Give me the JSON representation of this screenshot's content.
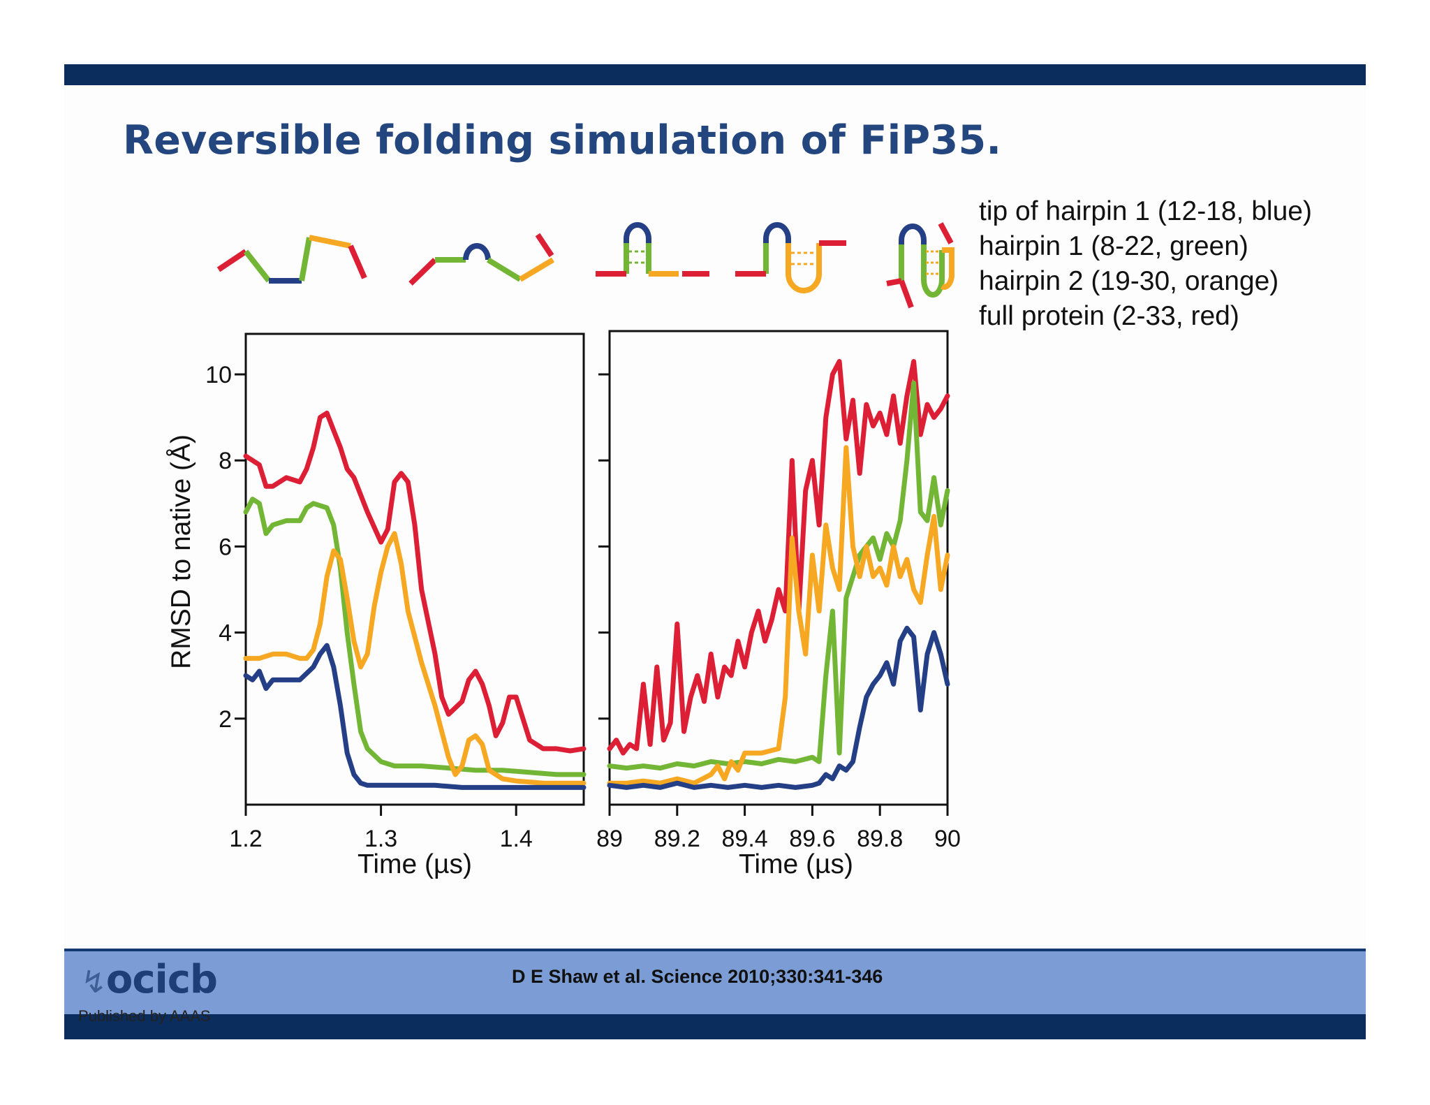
{
  "slide": {
    "title": "Reversible folding simulation of FiP35.",
    "legend": [
      "tip of hairpin 1 (12-18, blue)",
      "hairpin 1 (8-22, green)",
      "hairpin 2 (19-30, orange)",
      "full protein (2-33, red)"
    ],
    "citation": "D E Shaw et al. Science 2010;330:341-346",
    "logo_text": "ocicb",
    "publisher": "Published by AAAS"
  },
  "colors": {
    "blue": "#243f86",
    "green": "#73b636",
    "orange": "#f7a823",
    "red": "#dd1f36",
    "band_dark": "#0b2d5e",
    "band_light": "#7b9cd4",
    "title": "#23467f"
  },
  "chart_data": [
    {
      "type": "line",
      "ylabel": "RMSD to native (Å)",
      "xlabel": "Time (µs)",
      "xlim": [
        1.2,
        1.45
      ],
      "ylim": [
        0,
        10.9
      ],
      "xticks": [
        "1.2",
        "1.3",
        "1.4"
      ],
      "yticks": [
        "2",
        "4",
        "6",
        "8",
        "10"
      ],
      "series": [
        {
          "color": "red",
          "x": [
            1.2,
            1.205,
            1.21,
            1.215,
            1.22,
            1.23,
            1.24,
            1.245,
            1.25,
            1.255,
            1.26,
            1.265,
            1.27,
            1.275,
            1.28,
            1.29,
            1.3,
            1.305,
            1.31,
            1.315,
            1.32,
            1.325,
            1.33,
            1.34,
            1.345,
            1.35,
            1.36,
            1.365,
            1.37,
            1.375,
            1.38,
            1.385,
            1.39,
            1.395,
            1.4,
            1.405,
            1.41,
            1.42,
            1.43,
            1.44,
            1.45
          ],
          "y": [
            8.1,
            8.0,
            7.9,
            7.4,
            7.4,
            7.6,
            7.5,
            7.8,
            8.3,
            9.0,
            9.1,
            8.7,
            8.3,
            7.8,
            7.6,
            6.8,
            6.1,
            6.4,
            7.5,
            7.7,
            7.5,
            6.5,
            5.0,
            3.5,
            2.5,
            2.1,
            2.4,
            2.9,
            3.1,
            2.8,
            2.3,
            1.6,
            1.9,
            2.5,
            2.5,
            2.0,
            1.5,
            1.3,
            1.3,
            1.25,
            1.3
          ]
        },
        {
          "color": "green",
          "x": [
            1.2,
            1.205,
            1.21,
            1.215,
            1.22,
            1.23,
            1.24,
            1.245,
            1.25,
            1.26,
            1.265,
            1.27,
            1.275,
            1.28,
            1.285,
            1.29,
            1.3,
            1.31,
            1.32,
            1.33,
            1.35,
            1.37,
            1.39,
            1.41,
            1.43,
            1.45
          ],
          "y": [
            6.8,
            7.1,
            7.0,
            6.3,
            6.5,
            6.6,
            6.6,
            6.9,
            7.0,
            6.9,
            6.5,
            5.5,
            4.0,
            2.8,
            1.7,
            1.3,
            1.0,
            0.9,
            0.9,
            0.9,
            0.85,
            0.8,
            0.8,
            0.75,
            0.7,
            0.7
          ]
        },
        {
          "color": "orange",
          "x": [
            1.2,
            1.21,
            1.22,
            1.23,
            1.24,
            1.245,
            1.25,
            1.255,
            1.26,
            1.265,
            1.27,
            1.275,
            1.28,
            1.285,
            1.29,
            1.295,
            1.3,
            1.305,
            1.31,
            1.315,
            1.32,
            1.33,
            1.34,
            1.345,
            1.35,
            1.355,
            1.36,
            1.365,
            1.37,
            1.375,
            1.38,
            1.39,
            1.4,
            1.42,
            1.45
          ],
          "y": [
            3.4,
            3.4,
            3.5,
            3.5,
            3.4,
            3.4,
            3.6,
            4.2,
            5.3,
            5.9,
            5.7,
            4.8,
            3.8,
            3.2,
            3.5,
            4.6,
            5.4,
            6.0,
            6.3,
            5.6,
            4.5,
            3.3,
            2.3,
            1.7,
            1.1,
            0.7,
            0.9,
            1.5,
            1.6,
            1.4,
            0.8,
            0.6,
            0.55,
            0.5,
            0.5
          ]
        },
        {
          "color": "blue",
          "x": [
            1.2,
            1.205,
            1.21,
            1.215,
            1.22,
            1.23,
            1.24,
            1.25,
            1.255,
            1.26,
            1.265,
            1.27,
            1.275,
            1.28,
            1.285,
            1.29,
            1.3,
            1.32,
            1.34,
            1.36,
            1.38,
            1.4,
            1.42,
            1.45
          ],
          "y": [
            3.0,
            2.9,
            3.1,
            2.7,
            2.9,
            2.9,
            2.9,
            3.2,
            3.5,
            3.7,
            3.2,
            2.3,
            1.2,
            0.7,
            0.5,
            0.45,
            0.45,
            0.45,
            0.45,
            0.4,
            0.4,
            0.4,
            0.4,
            0.4
          ]
        }
      ]
    },
    {
      "type": "line",
      "xlabel": "Time (µs)",
      "xlim": [
        89,
        90
      ],
      "ylim": [
        0,
        10.9
      ],
      "xticks": [
        "89",
        "89.2",
        "89.4",
        "89.6",
        "89.8",
        "90"
      ],
      "series": [
        {
          "color": "red",
          "x": [
            89.0,
            89.02,
            89.04,
            89.06,
            89.08,
            89.1,
            89.12,
            89.14,
            89.16,
            89.18,
            89.2,
            89.22,
            89.24,
            89.26,
            89.28,
            89.3,
            89.32,
            89.34,
            89.36,
            89.38,
            89.4,
            89.42,
            89.44,
            89.46,
            89.48,
            89.5,
            89.52,
            89.54,
            89.56,
            89.58,
            89.6,
            89.62,
            89.64,
            89.66,
            89.68,
            89.7,
            89.72,
            89.74,
            89.76,
            89.78,
            89.8,
            89.82,
            89.84,
            89.86,
            89.88,
            89.9,
            89.92,
            89.94,
            89.96,
            89.98,
            90.0
          ],
          "y": [
            1.3,
            1.5,
            1.2,
            1.4,
            1.3,
            2.8,
            1.4,
            3.2,
            1.5,
            1.9,
            4.2,
            1.7,
            2.5,
            3.0,
            2.4,
            3.5,
            2.5,
            3.2,
            3.0,
            3.8,
            3.2,
            4.0,
            4.5,
            3.8,
            4.3,
            5.0,
            4.5,
            8.0,
            4.5,
            7.3,
            8.0,
            6.5,
            9.0,
            10.0,
            10.3,
            8.5,
            9.4,
            7.7,
            9.3,
            8.8,
            9.1,
            8.6,
            9.5,
            8.4,
            9.5,
            10.3,
            8.6,
            9.3,
            9.0,
            9.2,
            9.5
          ]
        },
        {
          "color": "green",
          "x": [
            89.0,
            89.05,
            89.1,
            89.15,
            89.2,
            89.25,
            89.3,
            89.35,
            89.4,
            89.45,
            89.5,
            89.55,
            89.6,
            89.62,
            89.64,
            89.66,
            89.68,
            89.7,
            89.72,
            89.74,
            89.76,
            89.78,
            89.8,
            89.82,
            89.84,
            89.86,
            89.88,
            89.9,
            89.92,
            89.94,
            89.96,
            89.98,
            90.0
          ],
          "y": [
            0.9,
            0.85,
            0.9,
            0.85,
            0.95,
            0.9,
            1.0,
            0.95,
            1.0,
            0.95,
            1.05,
            1.0,
            1.1,
            1.0,
            3.0,
            4.5,
            1.2,
            4.8,
            5.3,
            5.8,
            6.0,
            6.2,
            5.7,
            6.3,
            6.0,
            6.6,
            8.0,
            9.8,
            6.8,
            6.6,
            7.6,
            6.5,
            7.3
          ]
        },
        {
          "color": "orange",
          "x": [
            89.0,
            89.05,
            89.1,
            89.15,
            89.2,
            89.25,
            89.3,
            89.32,
            89.34,
            89.36,
            89.38,
            89.4,
            89.45,
            89.5,
            89.52,
            89.54,
            89.56,
            89.58,
            89.6,
            89.62,
            89.64,
            89.66,
            89.68,
            89.7,
            89.72,
            89.74,
            89.76,
            89.78,
            89.8,
            89.82,
            89.84,
            89.86,
            89.88,
            89.9,
            89.92,
            89.94,
            89.96,
            89.98,
            90.0
          ],
          "y": [
            0.5,
            0.5,
            0.55,
            0.5,
            0.6,
            0.5,
            0.7,
            0.9,
            0.6,
            1.0,
            0.8,
            1.2,
            1.2,
            1.3,
            2.5,
            6.2,
            4.5,
            3.5,
            5.8,
            4.5,
            6.5,
            5.5,
            5.0,
            8.3,
            6.0,
            5.3,
            6.0,
            5.3,
            5.5,
            5.1,
            6.0,
            5.3,
            5.7,
            5.0,
            4.7,
            5.8,
            6.7,
            5.0,
            5.8
          ]
        },
        {
          "color": "blue",
          "x": [
            89.0,
            89.05,
            89.1,
            89.15,
            89.2,
            89.25,
            89.3,
            89.35,
            89.4,
            89.45,
            89.5,
            89.55,
            89.6,
            89.62,
            89.64,
            89.66,
            89.68,
            89.7,
            89.72,
            89.74,
            89.76,
            89.78,
            89.8,
            89.82,
            89.84,
            89.86,
            89.88,
            89.9,
            89.92,
            89.94,
            89.96,
            89.98,
            90.0
          ],
          "y": [
            0.45,
            0.4,
            0.45,
            0.4,
            0.5,
            0.4,
            0.45,
            0.4,
            0.45,
            0.4,
            0.45,
            0.4,
            0.45,
            0.5,
            0.7,
            0.6,
            0.9,
            0.8,
            1.0,
            1.8,
            2.5,
            2.8,
            3.0,
            3.3,
            2.8,
            3.8,
            4.1,
            3.9,
            2.2,
            3.5,
            4.0,
            3.5,
            2.8
          ]
        }
      ]
    }
  ]
}
